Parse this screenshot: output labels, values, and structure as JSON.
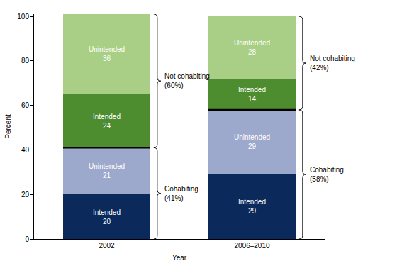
{
  "chart_data": {
    "type": "bar",
    "stacked": true,
    "data_labels": true,
    "x_label": "Year",
    "y_label": "Percent",
    "categories": [
      "2002",
      "2006–2010"
    ],
    "series": [
      {
        "name": "Intended",
        "group": "Cohabiting",
        "color": "#0b2a5b",
        "values": [
          20,
          29
        ]
      },
      {
        "name": "Unintended",
        "group": "Cohabiting",
        "color": "#9ca8cc",
        "values": [
          21,
          29
        ]
      },
      {
        "name": "Intended",
        "group": "Not cohabiting",
        "color": "#4e8c30",
        "values": [
          24,
          14
        ]
      },
      {
        "name": "Unintended",
        "group": "Not cohabiting",
        "color": "#a9cf87",
        "values": [
          36,
          28
        ]
      }
    ],
    "annotations": [
      {
        "category": "2002",
        "group": "Not cohabiting",
        "label": "(60%)"
      },
      {
        "category": "2002",
        "group": "Cohabiting",
        "label": "(41%)"
      },
      {
        "category": "2006–2010",
        "group": "Not cohabiting",
        "label": "(42%)"
      },
      {
        "category": "2006–2010",
        "group": "Cohabiting",
        "label": "(58%)"
      }
    ],
    "ylim": [
      0,
      101
    ],
    "yticks": [
      0,
      20,
      40,
      60,
      80,
      100
    ],
    "grid": false
  }
}
